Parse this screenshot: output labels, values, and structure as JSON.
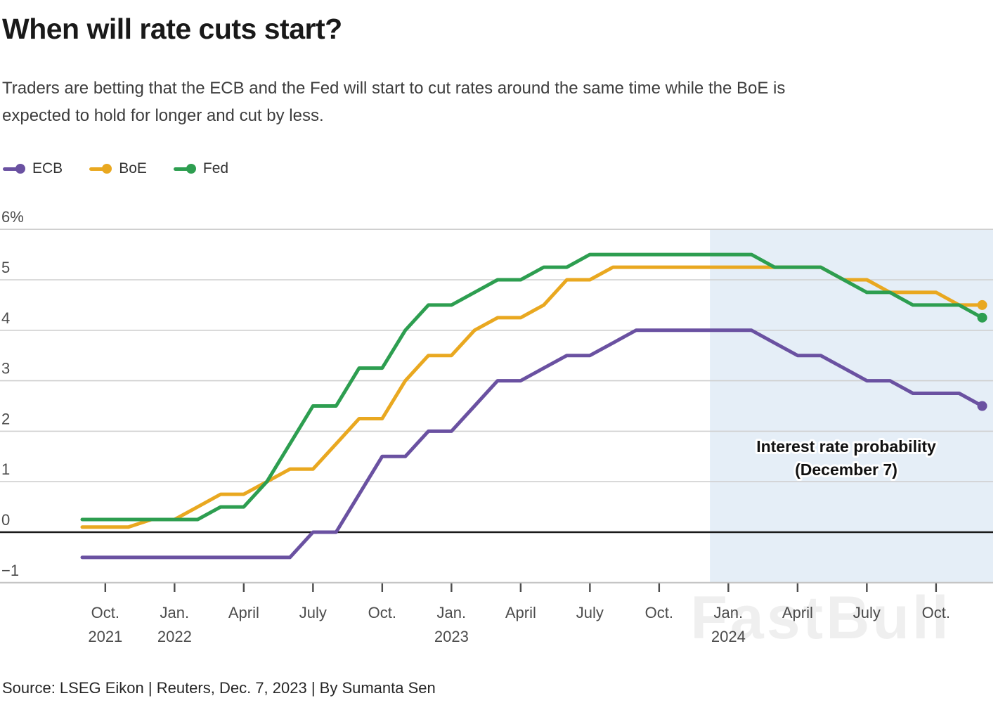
{
  "header": {
    "title": "When will rate cuts start?",
    "subtitle_line1": "Traders are betting that the ECB and the Fed will start to cut rates around the same time while the BoE is",
    "subtitle_line2": "expected to hold for longer and cut by less."
  },
  "legend": {
    "items": [
      {
        "label": "ECB",
        "color": "#6a51a1"
      },
      {
        "label": "BoE",
        "color": "#e9a820"
      },
      {
        "label": "Fed",
        "color": "#2d9e50"
      }
    ]
  },
  "watermark": "FastBull",
  "source_line": "Source: LSEG Eikon | Reuters, Dec. 7, 2023 | By Sumanta Sen",
  "chart_data": {
    "type": "line",
    "unit": "%",
    "title": "When will rate cuts start?",
    "ylim": [
      -1,
      6
    ],
    "y_tick_values": [
      6,
      5,
      4,
      3,
      2,
      1,
      0,
      -1
    ],
    "y_tick_labels": [
      "6%",
      "5",
      "4",
      "3",
      "2",
      "1",
      "0",
      "−1"
    ],
    "grid": true,
    "zero_line": true,
    "legend_position": "top-left",
    "x_months": [
      "Sep 2021",
      "Oct 2021",
      "Nov 2021",
      "Dec 2021",
      "Jan 2022",
      "Feb 2022",
      "Mar 2022",
      "Apr 2022",
      "May 2022",
      "Jun 2022",
      "Jul 2022",
      "Aug 2022",
      "Sep 2022",
      "Oct 2022",
      "Nov 2022",
      "Dec 2022",
      "Jan 2023",
      "Feb 2023",
      "Mar 2023",
      "Apr 2023",
      "May 2023",
      "Jun 2023",
      "Jul 2023",
      "Aug 2023",
      "Sep 2023",
      "Oct 2023",
      "Nov 2023",
      "Dec 2023",
      "Jan 2024",
      "Feb 2024",
      "Mar 2024",
      "Apr 2024",
      "May 2024",
      "Jun 2024",
      "Jul 2024",
      "Aug 2024",
      "Sep 2024",
      "Oct 2024",
      "Nov 2024",
      "Dec 2024"
    ],
    "x_ticks": [
      {
        "index": 1,
        "label": "Oct.",
        "year": "2021"
      },
      {
        "index": 4,
        "label": "Jan.",
        "year": "2022"
      },
      {
        "index": 7,
        "label": "April",
        "year": ""
      },
      {
        "index": 10,
        "label": "July",
        "year": ""
      },
      {
        "index": 13,
        "label": "Oct.",
        "year": ""
      },
      {
        "index": 16,
        "label": "Jan.",
        "year": "2023"
      },
      {
        "index": 19,
        "label": "April",
        "year": ""
      },
      {
        "index": 22,
        "label": "July",
        "year": ""
      },
      {
        "index": 25,
        "label": "Oct.",
        "year": ""
      },
      {
        "index": 28,
        "label": "Jan.",
        "year": "2024"
      },
      {
        "index": 31,
        "label": "April",
        "year": ""
      },
      {
        "index": 34,
        "label": "July",
        "year": ""
      },
      {
        "index": 37,
        "label": "Oct.",
        "year": ""
      }
    ],
    "series": [
      {
        "name": "ECB",
        "color": "#6a51a1",
        "values": [
          -0.5,
          -0.5,
          -0.5,
          -0.5,
          -0.5,
          -0.5,
          -0.5,
          -0.5,
          -0.5,
          -0.5,
          0.0,
          0.0,
          0.75,
          1.5,
          1.5,
          2.0,
          2.0,
          2.5,
          3.0,
          3.0,
          3.25,
          3.5,
          3.5,
          3.75,
          4.0,
          4.0,
          4.0,
          4.0,
          4.0,
          4.0,
          3.75,
          3.5,
          3.5,
          3.25,
          3.0,
          3.0,
          2.75,
          2.75,
          2.75,
          2.5
        ]
      },
      {
        "name": "BoE",
        "color": "#e9a820",
        "values": [
          0.1,
          0.1,
          0.1,
          0.25,
          0.25,
          0.5,
          0.75,
          0.75,
          1.0,
          1.25,
          1.25,
          1.75,
          2.25,
          2.25,
          3.0,
          3.5,
          3.5,
          4.0,
          4.25,
          4.25,
          4.5,
          5.0,
          5.0,
          5.25,
          5.25,
          5.25,
          5.25,
          5.25,
          5.25,
          5.25,
          5.25,
          5.25,
          5.25,
          5.0,
          5.0,
          4.75,
          4.75,
          4.75,
          4.5,
          4.5
        ]
      },
      {
        "name": "Fed",
        "color": "#2d9e50",
        "values": [
          0.25,
          0.25,
          0.25,
          0.25,
          0.25,
          0.25,
          0.5,
          0.5,
          1.0,
          1.75,
          2.5,
          2.5,
          3.25,
          3.25,
          4.0,
          4.5,
          4.5,
          4.75,
          5.0,
          5.0,
          5.25,
          5.25,
          5.5,
          5.5,
          5.5,
          5.5,
          5.5,
          5.5,
          5.5,
          5.5,
          5.25,
          5.25,
          5.25,
          5.0,
          4.75,
          4.75,
          4.5,
          4.5,
          4.5,
          4.25
        ]
      }
    ],
    "end_values": {
      "ECB": 2.5,
      "BoE": 4.5,
      "Fed": 4.25
    },
    "forecast_region": {
      "start_index": 27.2,
      "annotation_line1": "Interest rate probability",
      "annotation_line2": "(December 7)",
      "fill": "#e5eef7"
    },
    "colors": {
      "gridline": "#cfcfcf",
      "zero_line": "#1a1a1a",
      "axis_line": "#c4c4c4",
      "tick": "#4d4d4d",
      "axis_text": "#4c4c4c"
    }
  }
}
